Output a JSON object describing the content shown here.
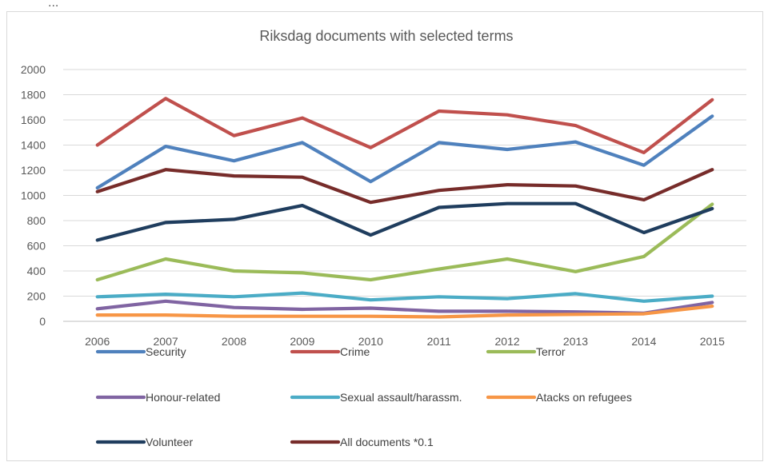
{
  "caption_fragment": "...",
  "chart_data": {
    "type": "line",
    "title": "Riksdag documents with selected terms",
    "xlabel": "",
    "ylabel": "",
    "categories": [
      "2006",
      "2007",
      "2008",
      "2009",
      "2010",
      "2011",
      "2012",
      "2013",
      "2014",
      "2015"
    ],
    "ylim": [
      0,
      2000
    ],
    "yticks": [
      0,
      200,
      400,
      600,
      800,
      1000,
      1200,
      1400,
      1600,
      1800,
      2000
    ],
    "grid": true,
    "legend_position": "bottom",
    "series": [
      {
        "name": "Security",
        "color": "#4f81bd",
        "values": [
          1060,
          1390,
          1275,
          1420,
          1110,
          1420,
          1365,
          1425,
          1240,
          1630
        ]
      },
      {
        "name": "Crime",
        "color": "#c0504d",
        "values": [
          1400,
          1770,
          1475,
          1615,
          1380,
          1670,
          1640,
          1555,
          1340,
          1760
        ]
      },
      {
        "name": "Terror",
        "color": "#9bbb59",
        "values": [
          330,
          495,
          400,
          385,
          330,
          415,
          495,
          395,
          515,
          930
        ]
      },
      {
        "name": "Honour-related",
        "color": "#8064a2",
        "values": [
          100,
          160,
          110,
          95,
          105,
          80,
          80,
          75,
          65,
          150
        ]
      },
      {
        "name": "Sexual assault/harassm.",
        "color": "#4bacc6",
        "values": [
          195,
          215,
          195,
          225,
          170,
          195,
          180,
          220,
          160,
          200
        ]
      },
      {
        "name": "Atacks on refugees",
        "color": "#f79646",
        "values": [
          50,
          50,
          40,
          40,
          40,
          35,
          50,
          55,
          60,
          120
        ]
      },
      {
        "name": "Volunteer",
        "color": "#1f3d5e",
        "values": [
          645,
          785,
          810,
          920,
          685,
          905,
          935,
          935,
          705,
          895
        ]
      },
      {
        "name": "All documents *0.1",
        "color": "#772c2a",
        "values": [
          1030,
          1205,
          1155,
          1145,
          945,
          1040,
          1085,
          1075,
          965,
          1205
        ]
      }
    ]
  }
}
